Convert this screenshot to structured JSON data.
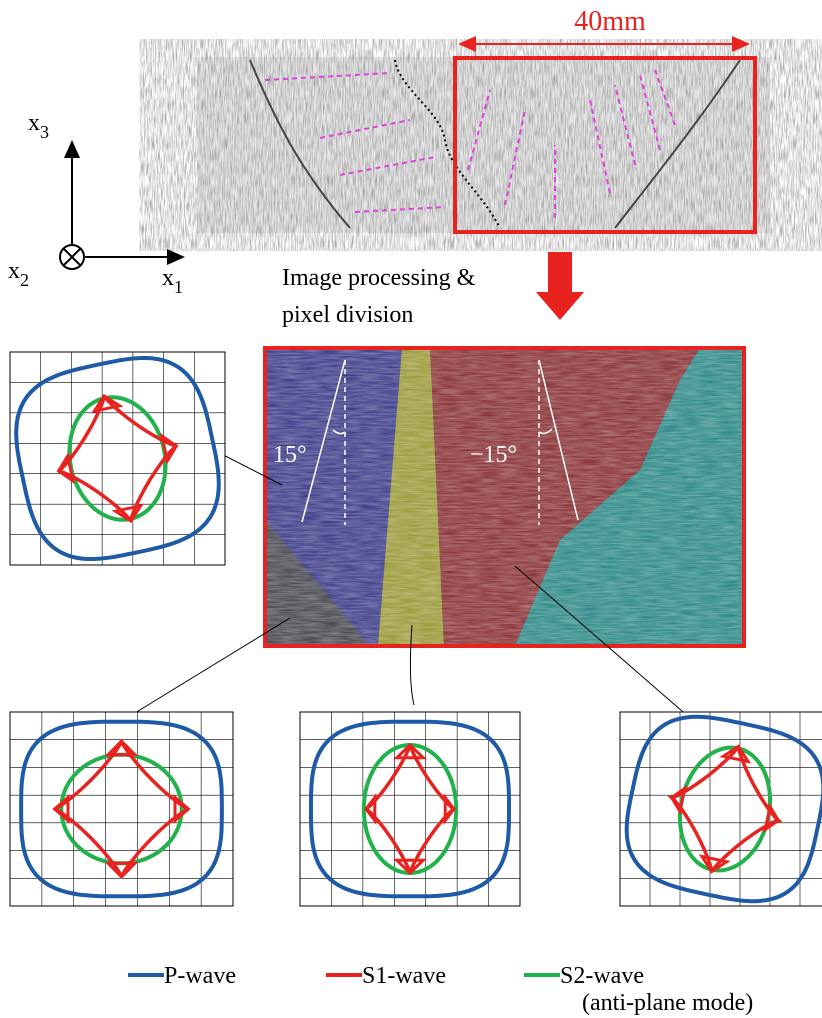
{
  "scale_label": "40mm",
  "axes": {
    "x3": {
      "base": "x",
      "sub": "3"
    },
    "x2": {
      "base": "x",
      "sub": "2"
    },
    "x1": {
      "base": "x",
      "sub": "1"
    }
  },
  "process_label": [
    "Image processing &",
    "pixel division"
  ],
  "angles": [
    "15°",
    "−15°"
  ],
  "legend": [
    {
      "label": "P-wave",
      "color": "#1f5aa6"
    },
    {
      "label": "S1-wave",
      "color": "#e8231f"
    },
    {
      "label": "S2-wave",
      "color": "#22b24c",
      "note": "(anti-plane mode)"
    }
  ]
}
